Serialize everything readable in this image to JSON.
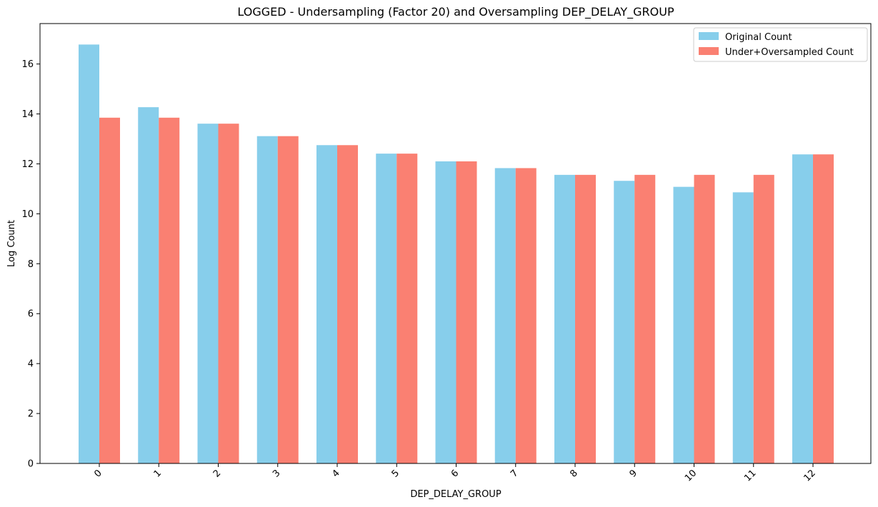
{
  "chart_data": {
    "type": "bar",
    "title": "LOGGED - Undersampling (Factor 20) and Oversampling DEP_DELAY_GROUP",
    "xlabel": "DEP_DELAY_GROUP",
    "ylabel": "Log Count",
    "categories": [
      "0",
      "1",
      "2",
      "3",
      "4",
      "5",
      "6",
      "7",
      "8",
      "9",
      "10",
      "11",
      "12"
    ],
    "series": [
      {
        "name": "Original Count",
        "color": "#87ceeb",
        "values": [
          16.78,
          14.27,
          13.61,
          13.11,
          12.75,
          12.41,
          12.1,
          11.83,
          11.56,
          11.32,
          11.08,
          10.86,
          12.38
        ]
      },
      {
        "name": "Under+Oversampled Count",
        "color": "#fa8072",
        "values": [
          13.85,
          13.85,
          13.61,
          13.11,
          12.75,
          12.41,
          12.1,
          11.83,
          11.56,
          11.56,
          11.56,
          11.56,
          12.38
        ]
      }
    ],
    "ylim": [
      0,
      17.62
    ],
    "yticks": [
      0,
      2,
      4,
      6,
      8,
      10,
      12,
      14,
      16
    ],
    "legend_position": "upper right",
    "grid": false,
    "xtick_rotation": 45
  }
}
